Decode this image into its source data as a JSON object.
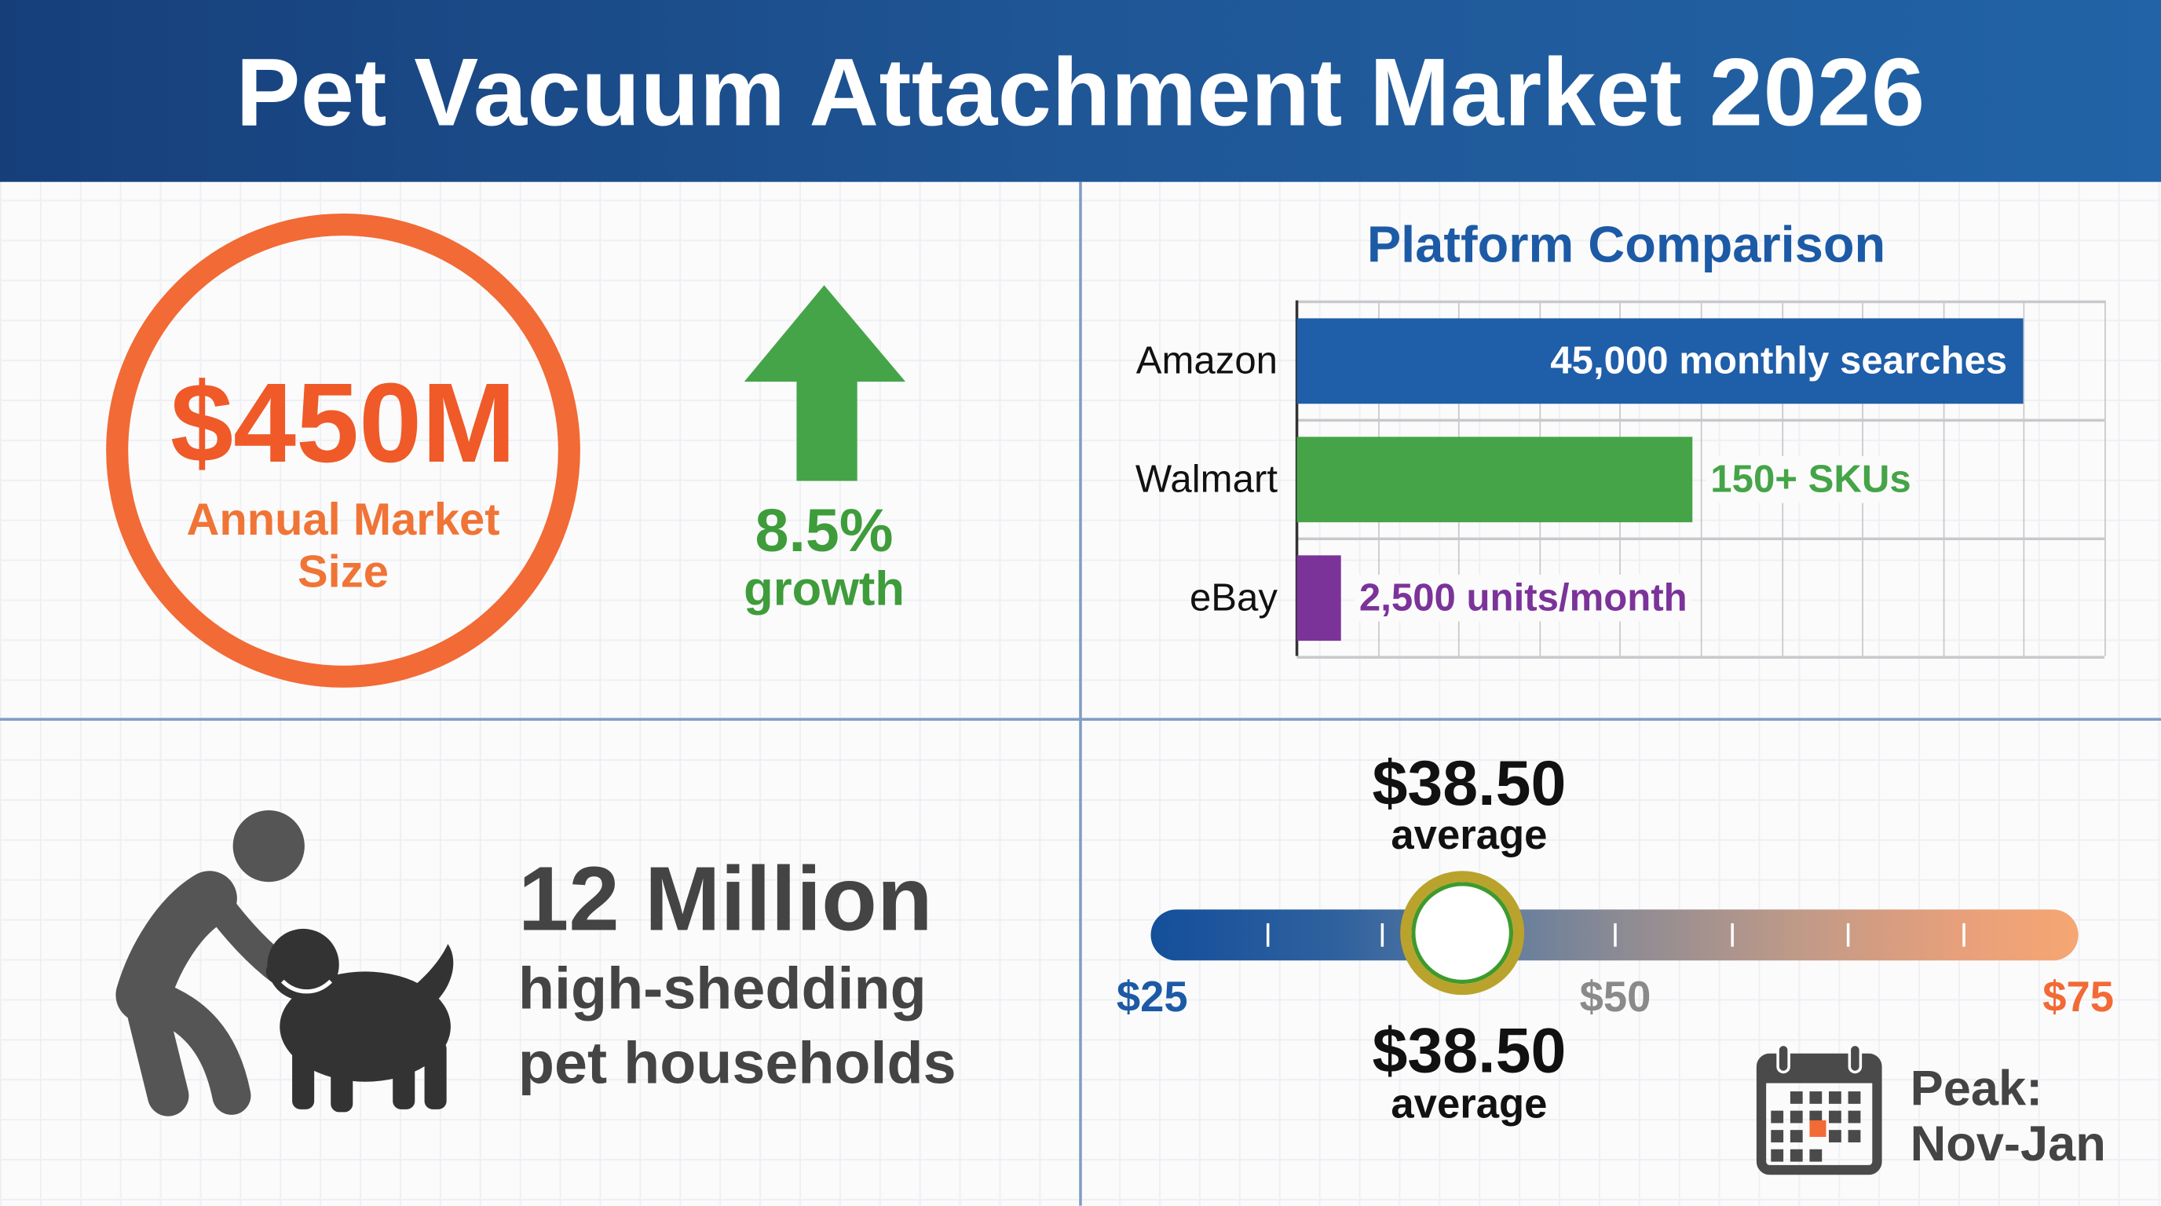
{
  "header": {
    "title": "Pet Vacuum Attachment Market 2026"
  },
  "market": {
    "value": "$450M",
    "label": "Annual Market Size",
    "accent": "#f26a35"
  },
  "growth": {
    "value": "8.5%",
    "label": "growth",
    "icon": "arrow-up-icon",
    "color": "#3f9c3b"
  },
  "households": {
    "count": "12 Million",
    "line1": "high-shedding",
    "line2": "pet households",
    "icon": "person-petting-dog-icon"
  },
  "price": {
    "value": 38.5,
    "top_value": "$38.50",
    "top_label": "average",
    "bottom_value": "$38.50",
    "bottom_label": "average",
    "min_label": "$25",
    "mid_label": "$50",
    "max_label": "$75",
    "range": [
      25,
      75
    ],
    "colors": {
      "min": "#1d5aa6",
      "mid": "#8a8a8a",
      "max": "#f26a35"
    }
  },
  "peak": {
    "line1": "Peak:",
    "line2": "Nov-Jan",
    "icon": "calendar-icon"
  },
  "chart_data": {
    "type": "bar",
    "orientation": "horizontal",
    "title": "Platform Comparison",
    "categories": [
      "Amazon",
      "Walmart",
      "eBay"
    ],
    "values": [
      9.0,
      4.9,
      0.55
    ],
    "xlim": [
      0,
      10
    ],
    "grid": true,
    "data_labels": [
      "45,000 monthly searches",
      "150+ SKUs",
      "2,500 units/month"
    ],
    "colors": [
      "#1f5ea8",
      "#45a447",
      "#7b3399"
    ]
  }
}
